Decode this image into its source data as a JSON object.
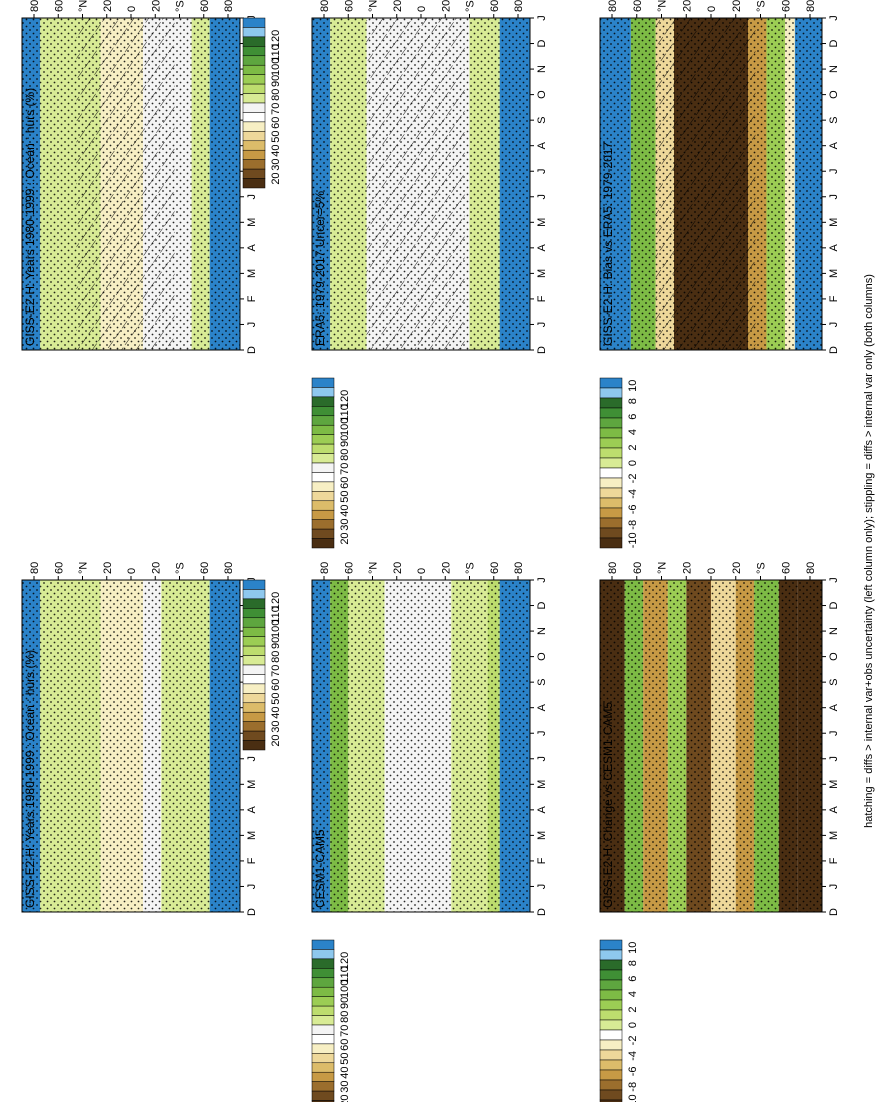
{
  "figure": {
    "footnote": "hatching = diffs > internal var+obs uncertainty (left column only); stippling = diffs > internal var only (both columns)"
  },
  "palettes": {
    "abs": [
      "#2b83c9",
      "#8ec8ee",
      "#2a6b2a",
      "#3f8f35",
      "#5ea63f",
      "#7dbb45",
      "#9ccd54",
      "#bddd6e",
      "#d8eb95",
      "#f4f4f4",
      "#ffffff",
      "#f7efc4",
      "#eed89a",
      "#dcbc6a",
      "#c79a45",
      "#9b6e2d",
      "#6f4a1f",
      "#4a2e12"
    ],
    "diff": [
      "#2b83c9",
      "#8ec8ee",
      "#2a6b2a",
      "#3f8f35",
      "#5ea63f",
      "#7dbb45",
      "#9ccd54",
      "#bddd6e",
      "#d8eb95",
      "#ffffff",
      "#f7efc4",
      "#eed89a",
      "#dcbc6a",
      "#c79a45",
      "#9b6e2d",
      "#6f4a1f",
      "#4a2e12"
    ]
  },
  "chart_data": [
    {
      "id": "p1",
      "type": "heatmap",
      "title": "GISS-E2-H: Years 1980-1999 : Ocean : hurs (%)",
      "x_ticks": [
        "D",
        "J",
        "F",
        "M",
        "A",
        "M",
        "J",
        "J",
        "A",
        "S",
        "O",
        "N",
        "D",
        "J"
      ],
      "y_ticks": [
        "80",
        "60",
        "°N",
        "20",
        "0",
        "20",
        "°S",
        "60",
        "80"
      ],
      "colorbar": [
        "120",
        "110",
        "100",
        "90",
        "80",
        "70",
        "60",
        "50",
        "40",
        "30",
        "20"
      ],
      "palette": "abs",
      "latitude_bands": [
        {
          "lat": [
            75,
            90
          ],
          "value": 130
        },
        {
          "lat": [
            60,
            75
          ],
          "value": 85
        },
        {
          "lat": [
            25,
            60
          ],
          "value": 85
        },
        {
          "lat": [
            -10,
            25
          ],
          "value": 73
        },
        {
          "lat": [
            -25,
            -10
          ],
          "value": 80
        },
        {
          "lat": [
            -50,
            -25
          ],
          "value": 83
        },
        {
          "lat": [
            -65,
            -50
          ],
          "value": 85
        },
        {
          "lat": [
            -90,
            -65
          ],
          "value": 130
        }
      ],
      "hatching": true,
      "stippling": true
    },
    {
      "id": "p2",
      "type": "heatmap",
      "title": "GISS-E2-H: Years 1980-1999 : Ocean : hurs (%)",
      "x_ticks": [
        "D",
        "J",
        "F",
        "M",
        "A",
        "M",
        "J",
        "J",
        "A",
        "S",
        "O",
        "N",
        "D",
        "J"
      ],
      "y_ticks": [
        "80",
        "60",
        "°N",
        "20",
        "0",
        "20",
        "°S",
        "60",
        "80"
      ],
      "colorbar": [
        "120",
        "110",
        "100",
        "90",
        "80",
        "70",
        "60",
        "50",
        "40",
        "30",
        "20"
      ],
      "palette": "abs",
      "latitude_bands": [
        {
          "lat": [
            75,
            90
          ],
          "value": 130
        },
        {
          "lat": [
            25,
            75
          ],
          "value": 85
        },
        {
          "lat": [
            -10,
            25
          ],
          "value": 73
        },
        {
          "lat": [
            -25,
            -10
          ],
          "value": 80
        },
        {
          "lat": [
            -65,
            -25
          ],
          "value": 85
        },
        {
          "lat": [
            -90,
            -65
          ],
          "value": 130
        }
      ],
      "hatching": false,
      "stippling": true
    },
    {
      "id": "p3",
      "type": "heatmap",
      "title": "ERA5: 1979-2017 Uncer=5%",
      "x_ticks": [
        "D",
        "J",
        "F",
        "M",
        "A",
        "M",
        "J",
        "J",
        "A",
        "S",
        "O",
        "N",
        "D",
        "J"
      ],
      "y_ticks": [
        "80",
        "60",
        "°N",
        "20",
        "0",
        "20",
        "°S",
        "60",
        "80"
      ],
      "colorbar": [
        "120",
        "110",
        "100",
        "90",
        "80",
        "70",
        "60",
        "50",
        "40",
        "30",
        "20"
      ],
      "palette": "abs",
      "latitude_bands": [
        {
          "lat": [
            75,
            90
          ],
          "value": 130
        },
        {
          "lat": [
            45,
            75
          ],
          "value": 87
        },
        {
          "lat": [
            15,
            45
          ],
          "value": 82
        },
        {
          "lat": [
            -15,
            15
          ],
          "value": 80
        },
        {
          "lat": [
            -40,
            -15
          ],
          "value": 84
        },
        {
          "lat": [
            -65,
            -40
          ],
          "value": 86
        },
        {
          "lat": [
            -90,
            -65
          ],
          "value": 130
        }
      ],
      "hatching": true,
      "stippling": true
    },
    {
      "id": "p4",
      "type": "heatmap",
      "title": "CESM1-CAM5",
      "x_ticks": [
        "D",
        "J",
        "F",
        "M",
        "A",
        "M",
        "J",
        "J",
        "A",
        "S",
        "O",
        "N",
        "D",
        "J"
      ],
      "y_ticks": [
        "80",
        "60",
        "°N",
        "20",
        "0",
        "20",
        "°S",
        "60",
        "80"
      ],
      "colorbar": [
        "120",
        "110",
        "100",
        "90",
        "80",
        "70",
        "60",
        "50",
        "40",
        "30",
        "20"
      ],
      "palette": "abs",
      "latitude_bands": [
        {
          "lat": [
            75,
            90
          ],
          "value": 130
        },
        {
          "lat": [
            60,
            75
          ],
          "value": 100
        },
        {
          "lat": [
            30,
            60
          ],
          "value": 88
        },
        {
          "lat": [
            0,
            30
          ],
          "value": 84
        },
        {
          "lat": [
            -25,
            0
          ],
          "value": 80
        },
        {
          "lat": [
            -55,
            -25
          ],
          "value": 86
        },
        {
          "lat": [
            -65,
            -55
          ],
          "value": 92
        },
        {
          "lat": [
            -90,
            -65
          ],
          "value": 130
        }
      ],
      "hatching": false,
      "stippling": true
    },
    {
      "id": "p5",
      "type": "heatmap",
      "title": "GISS-E2-H: Bias vs ERA5: 1979-2017",
      "x_ticks": [
        "D",
        "J",
        "F",
        "M",
        "A",
        "M",
        "J",
        "J",
        "A",
        "S",
        "O",
        "N",
        "D",
        "J"
      ],
      "y_ticks": [
        "80",
        "60",
        "°N",
        "20",
        "0",
        "20",
        "°S",
        "60",
        "80"
      ],
      "colorbar": [
        "10",
        "8",
        "6",
        "4",
        "2",
        "0",
        "-2",
        "-4",
        "-6",
        "-8",
        "-10"
      ],
      "palette": "diff",
      "latitude_bands": [
        {
          "lat": [
            65,
            90
          ],
          "value": 11
        },
        {
          "lat": [
            45,
            65
          ],
          "value": 3
        },
        {
          "lat": [
            30,
            45
          ],
          "value": -3
        },
        {
          "lat": [
            -30,
            30
          ],
          "value": -11
        },
        {
          "lat": [
            -45,
            -30
          ],
          "value": -5
        },
        {
          "lat": [
            -60,
            -45
          ],
          "value": 2
        },
        {
          "lat": [
            -68,
            -60
          ],
          "value": -2
        },
        {
          "lat": [
            -90,
            -68
          ],
          "value": 11
        }
      ],
      "hatching": true,
      "stippling": true
    },
    {
      "id": "p6",
      "type": "heatmap",
      "title": "GISS-E2-H: Change vs CESM1-CAM5",
      "x_ticks": [
        "D",
        "J",
        "F",
        "M",
        "A",
        "M",
        "J",
        "J",
        "A",
        "S",
        "O",
        "N",
        "D",
        "J"
      ],
      "y_ticks": [
        "80",
        "60",
        "°N",
        "20",
        "0",
        "20",
        "°S",
        "60",
        "80"
      ],
      "colorbar": [
        "10",
        "8",
        "6",
        "4",
        "2",
        "0",
        "-2",
        "-4",
        "-6",
        "-8",
        "-10"
      ],
      "palette": "diff",
      "latitude_bands": [
        {
          "lat": [
            70,
            90
          ],
          "value": -11
        },
        {
          "lat": [
            55,
            70
          ],
          "value": 3
        },
        {
          "lat": [
            35,
            55
          ],
          "value": -5
        },
        {
          "lat": [
            20,
            35
          ],
          "value": 2
        },
        {
          "lat": [
            0,
            20
          ],
          "value": -9
        },
        {
          "lat": [
            -20,
            0
          ],
          "value": -3
        },
        {
          "lat": [
            -35,
            -20
          ],
          "value": -6
        },
        {
          "lat": [
            -55,
            -35
          ],
          "value": 3
        },
        {
          "lat": [
            -70,
            -55
          ],
          "value": -11
        },
        {
          "lat": [
            -90,
            -70
          ],
          "value": -11
        }
      ],
      "hatching": false,
      "stippling": true
    }
  ]
}
